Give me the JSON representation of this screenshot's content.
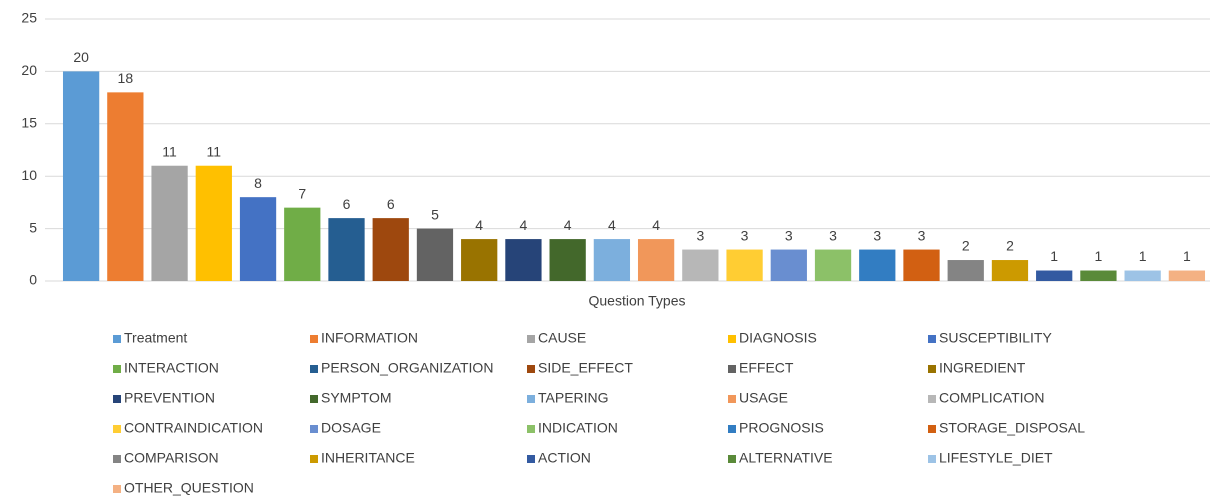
{
  "chart_data": {
    "type": "bar",
    "x_label": "Question Types",
    "categories": [
      "Treatment",
      "INFORMATION",
      "CAUSE",
      "DIAGNOSIS",
      "SUSCEPTIBILITY",
      "INTERACTION",
      "PERSON_ORGANIZATION",
      "SIDE_EFFECT",
      "EFFECT",
      "INGREDIENT",
      "PREVENTION",
      "SYMPTOM",
      "TAPERING",
      "USAGE",
      "COMPLICATION",
      "CONTRAINDICATION",
      "DOSAGE",
      "INDICATION",
      "PROGNOSIS",
      "STORAGE_DISPOSAL",
      "COMPARISON",
      "INHERITANCE",
      "ACTION",
      "ALTERNATIVE",
      "LIFESTYLE_DIET",
      "OTHER_QUESTION"
    ],
    "values": [
      20,
      18,
      11,
      11,
      8,
      7,
      6,
      6,
      5,
      4,
      4,
      4,
      4,
      4,
      3,
      3,
      3,
      3,
      3,
      3,
      2,
      2,
      1,
      1,
      1,
      1
    ],
    "colors": [
      "#5b9bd5",
      "#ed7d31",
      "#a5a5a5",
      "#ffc000",
      "#4472c4",
      "#70ad47",
      "#255e91",
      "#9e480e",
      "#636363",
      "#997300",
      "#264478",
      "#43682b",
      "#7cafdd",
      "#f1975a",
      "#b7b7b7",
      "#ffcd33",
      "#698ed0",
      "#8cc168",
      "#327dc2",
      "#d26012",
      "#848484",
      "#cc9a00",
      "#335aa1",
      "#5a8a39",
      "#9dc3e6",
      "#f4b183"
    ],
    "ylim": [
      0,
      25
    ],
    "yticks": [
      0,
      5,
      10,
      15,
      20,
      25
    ],
    "grid": true,
    "legend": "bottom"
  }
}
